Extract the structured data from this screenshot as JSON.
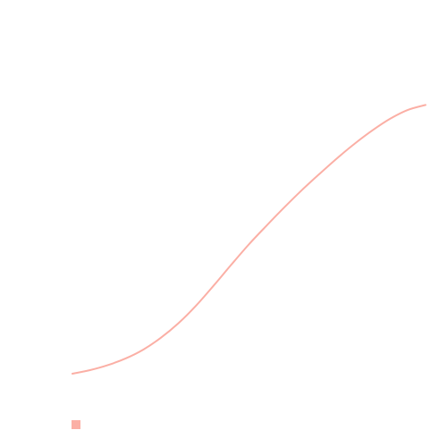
{
  "chart_data": {
    "type": "line",
    "title": "",
    "xlabel": "",
    "ylabel": "",
    "grid": false,
    "legend_position": "bottom-left",
    "xlim": [
      0,
      1
    ],
    "ylim": [
      0,
      1
    ],
    "series": [
      {
        "color": "#fbafa5",
        "points": [
          [
            0.0,
            0.0
          ],
          [
            0.05,
            0.013
          ],
          [
            0.1,
            0.031
          ],
          [
            0.15,
            0.055
          ],
          [
            0.2,
            0.087
          ],
          [
            0.25,
            0.13
          ],
          [
            0.3,
            0.183
          ],
          [
            0.35,
            0.247
          ],
          [
            0.4,
            0.32
          ],
          [
            0.45,
            0.396
          ],
          [
            0.5,
            0.47
          ],
          [
            0.55,
            0.538
          ],
          [
            0.6,
            0.604
          ],
          [
            0.65,
            0.667
          ],
          [
            0.7,
            0.726
          ],
          [
            0.75,
            0.783
          ],
          [
            0.8,
            0.836
          ],
          [
            0.85,
            0.884
          ],
          [
            0.9,
            0.926
          ],
          [
            0.95,
            0.958
          ],
          [
            1.0,
            0.976
          ]
        ]
      }
    ]
  }
}
